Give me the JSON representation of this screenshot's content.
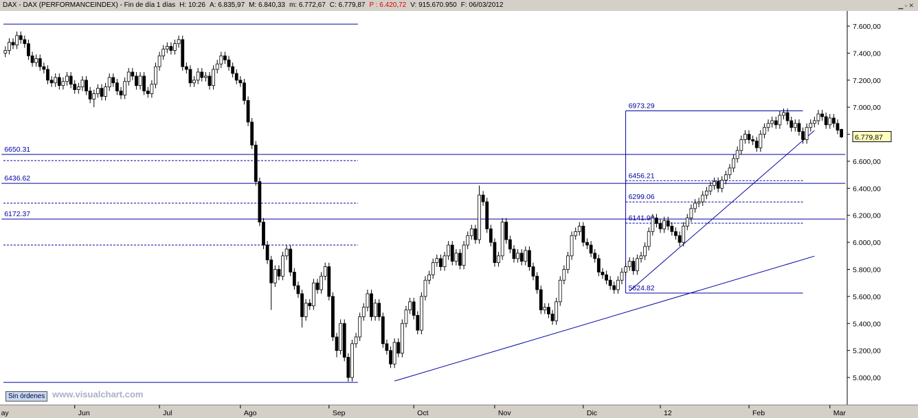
{
  "header": [
    {
      "text": "DAX - DAX (PERFORMANCEINDEX) - Fin de día 1 días",
      "color": "#000000"
    },
    {
      "text": "H: 10:26",
      "color": "#000000"
    },
    {
      "text": "A: 6.835,97",
      "color": "#000000"
    },
    {
      "text": "M: 6.840,33",
      "color": "#000000"
    },
    {
      "text": "m: 6.772,67",
      "color": "#000000"
    },
    {
      "text": "C: 6.779,87",
      "color": "#000000"
    },
    {
      "text": "P : 6.420,72",
      "color": "#e00000"
    },
    {
      "text": "V: 915.670.950",
      "color": "#000000"
    },
    {
      "text": "F: 06/03/2012",
      "color": "#000000"
    }
  ],
  "chart_data": {
    "type": "candlestick",
    "open": [
      7400,
      7420,
      7480,
      7460,
      7530,
      7500,
      7470,
      7380,
      7330,
      7360,
      7300,
      7280,
      7200,
      7180,
      7220,
      7160,
      7190,
      7230,
      7170,
      7130,
      7150,
      7200,
      7120,
      7060,
      7100,
      7140,
      7080,
      7150,
      7220,
      7180,
      7120,
      7090,
      7190,
      7260,
      7230,
      7160,
      7230,
      7120,
      7100,
      7170,
      7300,
      7380,
      7430,
      7450,
      7420,
      7470,
      7500,
      7300,
      7280,
      7180,
      7200,
      7260,
      7220,
      7230,
      7160,
      7280,
      7320,
      7380,
      7350,
      7300,
      7250,
      7200,
      7180,
      7050,
      6890,
      6720,
      6450,
      6150,
      5980,
      5870,
      5700,
      5800,
      5750,
      5900,
      5950,
      5780,
      5680,
      5620,
      5450,
      5550,
      5530,
      5700,
      5650,
      5750,
      5820,
      5600,
      5300,
      5200,
      5400,
      5150,
      5000,
      5250,
      5300,
      5450,
      5520,
      5620,
      5450,
      5550,
      5450,
      5250,
      5200,
      5100,
      5260,
      5180,
      5400,
      5500,
      5560,
      5460,
      5350,
      5600,
      5720,
      5760,
      5850,
      5880,
      5820,
      5900,
      5980,
      5860,
      5920,
      5830,
      5980,
      6050,
      6100,
      6020,
      6350,
      6300,
      6100,
      6000,
      5850,
      5900,
      6150,
      6020,
      5950,
      5880,
      5920,
      5860,
      5940,
      5820,
      5750,
      5650,
      5500,
      5520,
      5470,
      5420,
      5560,
      5720,
      5800,
      5900,
      6050,
      6080,
      6120,
      6000,
      5980,
      5920,
      5880,
      5780,
      5760,
      5720,
      5680,
      5650,
      5720,
      5780,
      5820,
      5860,
      5790,
      5880,
      5900,
      5970,
      6080,
      6180,
      6140,
      6100,
      6160,
      6120,
      6080,
      6050,
      6000,
      6120,
      6180,
      6250,
      6290,
      6300,
      6350,
      6380,
      6420,
      6450,
      6400,
      6460,
      6500,
      6550,
      6620,
      6680,
      6760,
      6800,
      6760,
      6750,
      6700,
      6800,
      6850,
      6880,
      6900,
      6870,
      6940,
      6960,
      6900,
      6850,
      6880,
      6820,
      6760,
      6850,
      6880,
      6900,
      6950,
      6930,
      6870,
      6920,
      6880,
      6835.97
    ],
    "high": [
      7450,
      7510,
      7510,
      7560,
      7560,
      7530,
      7500,
      7410,
      7390,
      7390,
      7330,
      7310,
      7230,
      7250,
      7250,
      7220,
      7260,
      7260,
      7200,
      7180,
      7230,
      7230,
      7150,
      7130,
      7170,
      7170,
      7180,
      7250,
      7250,
      7210,
      7150,
      7220,
      7290,
      7290,
      7260,
      7260,
      7260,
      7150,
      7200,
      7330,
      7410,
      7460,
      7480,
      7480,
      7500,
      7530,
      7530,
      7330,
      7310,
      7230,
      7290,
      7290,
      7260,
      7260,
      7310,
      7350,
      7410,
      7410,
      7380,
      7330,
      7280,
      7230,
      7210,
      7080,
      6920,
      6750,
      6480,
      6180,
      6010,
      5900,
      5830,
      5830,
      5930,
      5980,
      5980,
      5810,
      5710,
      5650,
      5580,
      5580,
      5730,
      5730,
      5780,
      5850,
      5850,
      5630,
      5330,
      5430,
      5430,
      5180,
      5280,
      5330,
      5480,
      5550,
      5650,
      5650,
      5580,
      5580,
      5480,
      5280,
      5230,
      5290,
      5290,
      5430,
      5530,
      5590,
      5590,
      5490,
      5630,
      5750,
      5790,
      5880,
      5910,
      5910,
      5930,
      6010,
      6010,
      5950,
      5950,
      6010,
      6080,
      6130,
      6130,
      6420,
      6380,
      6330,
      6130,
      6030,
      5930,
      6180,
      6180,
      6050,
      5980,
      5950,
      5950,
      5970,
      5970,
      5850,
      5780,
      5680,
      5550,
      5550,
      5500,
      5590,
      5750,
      5830,
      5930,
      6080,
      6110,
      6150,
      6150,
      6030,
      6010,
      5950,
      5910,
      5810,
      5790,
      5750,
      5710,
      5750,
      5810,
      5850,
      5890,
      5890,
      5910,
      5930,
      6000,
      6110,
      6210,
      6210,
      6170,
      6190,
      6190,
      6150,
      6110,
      6080,
      6150,
      6210,
      6280,
      6320,
      6330,
      6380,
      6410,
      6450,
      6480,
      6480,
      6490,
      6530,
      6580,
      6650,
      6710,
      6790,
      6830,
      6830,
      6790,
      6780,
      6830,
      6880,
      6910,
      6930,
      6930,
      6970,
      6990,
      6990,
      6930,
      6910,
      6910,
      6850,
      6880,
      6910,
      6930,
      6980,
      6980,
      6960,
      6950,
      6950,
      6910,
      6840.33
    ],
    "low": [
      7370,
      7390,
      7430,
      7430,
      7470,
      7440,
      7350,
      7300,
      7300,
      7270,
      7250,
      7170,
      7150,
      7150,
      7130,
      7130,
      7160,
      7140,
      7100,
      7100,
      7120,
      7090,
      7030,
      7000,
      7070,
      7050,
      7050,
      7120,
      7150,
      7090,
      7060,
      7060,
      7160,
      7200,
      7130,
      7130,
      7090,
      7070,
      7070,
      7140,
      7270,
      7350,
      7400,
      7390,
      7390,
      7440,
      7270,
      7250,
      7150,
      7150,
      7170,
      7190,
      7190,
      7130,
      7130,
      7250,
      7290,
      7320,
      7270,
      7220,
      7170,
      7150,
      7020,
      6860,
      6690,
      6420,
      6120,
      5950,
      5840,
      5500,
      5670,
      5720,
      5720,
      5870,
      5750,
      5650,
      5590,
      5370,
      5420,
      5500,
      5500,
      5620,
      5620,
      5720,
      5570,
      5270,
      5150,
      5170,
      5120,
      4970,
      4970,
      5220,
      5270,
      5420,
      5490,
      5420,
      5420,
      5420,
      5220,
      5170,
      5070,
      5070,
      5150,
      5150,
      5370,
      5470,
      5430,
      5320,
      5320,
      5570,
      5690,
      5730,
      5820,
      5790,
      5790,
      5870,
      5830,
      5830,
      5800,
      5800,
      5950,
      6020,
      5990,
      5990,
      6270,
      6070,
      5970,
      5820,
      5820,
      5870,
      5990,
      5920,
      5850,
      5850,
      5830,
      5830,
      5790,
      5720,
      5620,
      5470,
      5470,
      5440,
      5390,
      5390,
      5530,
      5690,
      5770,
      5870,
      6020,
      6050,
      5970,
      5950,
      5890,
      5850,
      5750,
      5730,
      5690,
      5650,
      5620,
      5620,
      5690,
      5750,
      5790,
      5760,
      5760,
      5850,
      5870,
      5940,
      6050,
      6110,
      6070,
      6070,
      6090,
      6050,
      6020,
      5970,
      5970,
      6090,
      6150,
      6220,
      6260,
      6270,
      6320,
      6350,
      6390,
      6370,
      6370,
      6430,
      6470,
      6520,
      6590,
      6650,
      6730,
      6730,
      6720,
      6670,
      6670,
      6770,
      6820,
      6850,
      6840,
      6840,
      6910,
      6870,
      6820,
      6820,
      6790,
      6730,
      6730,
      6820,
      6850,
      6870,
      6900,
      6840,
      6840,
      6850,
      6800,
      6772.67
    ],
    "close": [
      7420,
      7480,
      7460,
      7530,
      7500,
      7470,
      7380,
      7330,
      7360,
      7300,
      7280,
      7200,
      7180,
      7220,
      7160,
      7190,
      7230,
      7170,
      7130,
      7150,
      7200,
      7120,
      7060,
      7100,
      7140,
      7080,
      7150,
      7220,
      7180,
      7120,
      7090,
      7190,
      7260,
      7230,
      7160,
      7230,
      7120,
      7100,
      7170,
      7300,
      7380,
      7430,
      7450,
      7420,
      7470,
      7500,
      7300,
      7280,
      7180,
      7200,
      7260,
      7220,
      7230,
      7160,
      7280,
      7320,
      7380,
      7350,
      7300,
      7250,
      7200,
      7180,
      7050,
      6890,
      6720,
      6450,
      6150,
      5980,
      5870,
      5700,
      5800,
      5750,
      5900,
      5950,
      5780,
      5680,
      5620,
      5450,
      5550,
      5530,
      5700,
      5650,
      5750,
      5820,
      5600,
      5300,
      5200,
      5400,
      5150,
      5000,
      5250,
      5300,
      5450,
      5520,
      5620,
      5450,
      5550,
      5450,
      5250,
      5200,
      5100,
      5260,
      5180,
      5400,
      5500,
      5560,
      5460,
      5350,
      5600,
      5720,
      5760,
      5850,
      5880,
      5820,
      5900,
      5980,
      5860,
      5920,
      5830,
      5980,
      6050,
      6100,
      6020,
      6350,
      6300,
      6100,
      6000,
      5850,
      5900,
      6150,
      6020,
      5950,
      5880,
      5920,
      5860,
      5940,
      5820,
      5750,
      5650,
      5500,
      5520,
      5470,
      5420,
      5560,
      5720,
      5800,
      5900,
      6050,
      6080,
      6120,
      6000,
      5980,
      5920,
      5880,
      5780,
      5760,
      5720,
      5680,
      5650,
      5720,
      5780,
      5820,
      5860,
      5790,
      5880,
      5900,
      5970,
      6080,
      6180,
      6140,
      6100,
      6160,
      6120,
      6080,
      6050,
      6000,
      6120,
      6180,
      6250,
      6290,
      6300,
      6350,
      6380,
      6420,
      6450,
      6400,
      6460,
      6500,
      6550,
      6620,
      6680,
      6760,
      6800,
      6760,
      6750,
      6700,
      6800,
      6850,
      6880,
      6900,
      6870,
      6940,
      6960,
      6900,
      6850,
      6880,
      6820,
      6760,
      6850,
      6880,
      6900,
      6950,
      6930,
      6870,
      6920,
      6880,
      6830,
      6779.87
    ],
    "ylim": [
      4797,
      7717
    ],
    "yticks": [
      {
        "value": 5000,
        "label": "5.000,00"
      },
      {
        "value": 5200,
        "label": "5.200,00"
      },
      {
        "value": 5400,
        "label": "5.400,00"
      },
      {
        "value": 5600,
        "label": "5.600,00"
      },
      {
        "value": 5800,
        "label": "5.800,00"
      },
      {
        "value": 6000,
        "label": "6.000,00"
      },
      {
        "value": 6200,
        "label": "6.200,00"
      },
      {
        "value": 6400,
        "label": "6.400,00"
      },
      {
        "value": 6600,
        "label": "6.600,00"
      },
      {
        "value": 6800,
        "label": "6.800,00"
      },
      {
        "value": 7000,
        "label": "7.000,00"
      },
      {
        "value": 7200,
        "label": "7.200,00"
      },
      {
        "value": 7400,
        "label": "7.400,00"
      },
      {
        "value": 7600,
        "label": "7.600,00"
      }
    ],
    "xlabels": [
      {
        "index": -2,
        "label": "ay"
      },
      {
        "index": 18,
        "label": "Jun"
      },
      {
        "index": 40,
        "label": "Jul"
      },
      {
        "index": 61,
        "label": "Ago"
      },
      {
        "index": 84,
        "label": "Sep"
      },
      {
        "index": 106,
        "label": "Oct"
      },
      {
        "index": 127,
        "label": "Nov"
      },
      {
        "index": 150,
        "label": "Dic"
      },
      {
        "index": 170,
        "label": "12"
      },
      {
        "index": 193,
        "label": "Feb"
      },
      {
        "index": 214,
        "label": "Mar"
      }
    ],
    "last_label": "6.779,87",
    "levels": [
      {
        "value": 7615,
        "x": [
          -0.5,
          91.5
        ],
        "dash": false,
        "show_label": false
      },
      {
        "value": 6650.31,
        "x": [
          -1,
          218
        ],
        "dash": false,
        "show_label": true
      },
      {
        "value": 6605,
        "x": [
          -0.5,
          91.5
        ],
        "dash": true,
        "show_label": false
      },
      {
        "value": 6436.62,
        "x": [
          -1,
          218
        ],
        "dash": false,
        "show_label": true
      },
      {
        "value": 6290,
        "x": [
          -0.5,
          91.5
        ],
        "dash": true,
        "show_label": false
      },
      {
        "value": 6172.37,
        "x": [
          -1,
          218
        ],
        "dash": false,
        "show_label": true
      },
      {
        "value": 5980,
        "x": [
          -0.5,
          91.5
        ],
        "dash": true,
        "show_label": false
      },
      {
        "value": 4964,
        "x": [
          -0.5,
          91.5
        ],
        "dash": false,
        "show_label": false
      },
      {
        "value": 6973.29,
        "x": [
          161,
          207
        ],
        "dash": false,
        "show_label": true
      },
      {
        "value": 6456.21,
        "x": [
          161,
          207
        ],
        "dash": true,
        "show_label": true
      },
      {
        "value": 6299.06,
        "x": [
          161,
          207
        ],
        "dash": true,
        "show_label": true
      },
      {
        "value": 6141.9,
        "label": "6141.90",
        "x": [
          161,
          207
        ],
        "dash": true,
        "show_label": true
      },
      {
        "value": 5624.82,
        "x": [
          161,
          207
        ],
        "dash": false,
        "show_label": true
      }
    ],
    "trendlines": [
      {
        "x": [
          101,
          210
        ],
        "y": [
          4974,
          5898
        ]
      },
      {
        "x": [
          162,
          210
        ],
        "y": [
          5640,
          6828
        ]
      },
      {
        "x": [
          161,
          161
        ],
        "y": [
          6973.29,
          5624.82
        ]
      }
    ],
    "up_color": "#ffffff",
    "down_color": "#000000",
    "line_color": "#0000a0"
  },
  "footer": {
    "button": "Sin órdenes",
    "watermark": "www.visualchart.com"
  }
}
